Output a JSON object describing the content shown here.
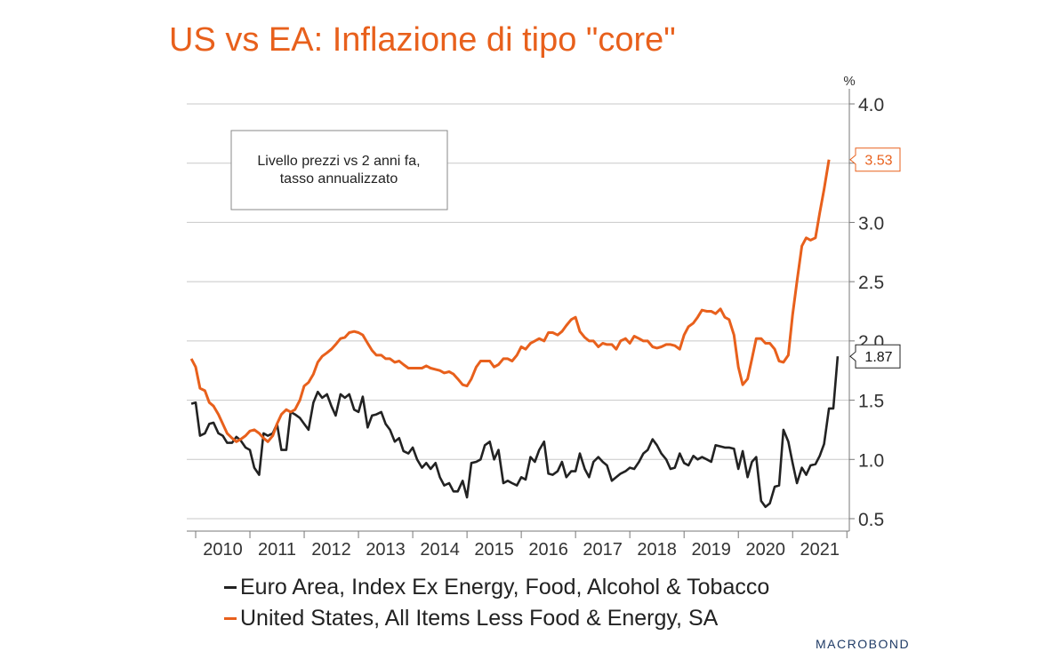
{
  "title": "US vs EA: Inflazione di tipo \"core\"",
  "annotation": {
    "line1": "Livello prezzi vs 2 anni fa,",
    "line2": "tasso annualizzato"
  },
  "unit_label": "%",
  "logo_text": "MACROBOND",
  "colors": {
    "us": "#e8601c",
    "ea": "#222222",
    "grid": "#c8c8c8"
  },
  "chart_data": {
    "type": "line",
    "title": "US vs EA: Inflazione di tipo \"core\"",
    "ylabel": "%",
    "ylim": [
      0.4,
      4.1
    ],
    "yticks": [
      0.5,
      1.0,
      1.5,
      2.0,
      2.5,
      3.0,
      3.5,
      4.0
    ],
    "ytick_labels": [
      "0.5",
      "1.0",
      "1.5",
      "2.0",
      "2.5",
      "3.0",
      "",
      "4.0"
    ],
    "xlim": [
      2009.75,
      2022.05
    ],
    "xtick_labels": [
      "2010",
      "2011",
      "2012",
      "2013",
      "2014",
      "2015",
      "2016",
      "2017",
      "2018",
      "2019",
      "2020",
      "2021"
    ],
    "grid": true,
    "legend_position": "bottom",
    "series": [
      {
        "name": "Euro Area, Index Ex Energy, Food, Alcohol & Tobacco",
        "key": "ea",
        "last_value_label": "1.87",
        "points": [
          [
            2009.92,
            1.47
          ],
          [
            2010.0,
            1.48
          ],
          [
            2010.08,
            1.2
          ],
          [
            2010.17,
            1.22
          ],
          [
            2010.25,
            1.3
          ],
          [
            2010.33,
            1.31
          ],
          [
            2010.42,
            1.22
          ],
          [
            2010.5,
            1.2
          ],
          [
            2010.58,
            1.14
          ],
          [
            2010.67,
            1.14
          ],
          [
            2010.75,
            1.19
          ],
          [
            2010.83,
            1.16
          ],
          [
            2010.92,
            1.1
          ],
          [
            2011.0,
            1.08
          ],
          [
            2011.08,
            0.93
          ],
          [
            2011.17,
            0.87
          ],
          [
            2011.25,
            1.22
          ],
          [
            2011.33,
            1.2
          ],
          [
            2011.42,
            1.22
          ],
          [
            2011.5,
            1.3
          ],
          [
            2011.58,
            1.08
          ],
          [
            2011.67,
            1.08
          ],
          [
            2011.75,
            1.4
          ],
          [
            2011.83,
            1.38
          ],
          [
            2011.92,
            1.35
          ],
          [
            2012.0,
            1.3
          ],
          [
            2012.08,
            1.25
          ],
          [
            2012.17,
            1.48
          ],
          [
            2012.25,
            1.57
          ],
          [
            2012.33,
            1.52
          ],
          [
            2012.42,
            1.55
          ],
          [
            2012.5,
            1.45
          ],
          [
            2012.58,
            1.37
          ],
          [
            2012.67,
            1.55
          ],
          [
            2012.75,
            1.52
          ],
          [
            2012.83,
            1.55
          ],
          [
            2012.92,
            1.42
          ],
          [
            2013.0,
            1.4
          ],
          [
            2013.08,
            1.53
          ],
          [
            2013.17,
            1.27
          ],
          [
            2013.25,
            1.37
          ],
          [
            2013.33,
            1.38
          ],
          [
            2013.42,
            1.4
          ],
          [
            2013.5,
            1.3
          ],
          [
            2013.58,
            1.25
          ],
          [
            2013.67,
            1.15
          ],
          [
            2013.75,
            1.18
          ],
          [
            2013.83,
            1.07
          ],
          [
            2013.92,
            1.05
          ],
          [
            2014.0,
            1.1
          ],
          [
            2014.08,
            1.0
          ],
          [
            2014.17,
            0.93
          ],
          [
            2014.25,
            0.97
          ],
          [
            2014.33,
            0.92
          ],
          [
            2014.42,
            0.97
          ],
          [
            2014.5,
            0.85
          ],
          [
            2014.58,
            0.78
          ],
          [
            2014.67,
            0.8
          ],
          [
            2014.75,
            0.73
          ],
          [
            2014.83,
            0.73
          ],
          [
            2014.92,
            0.82
          ],
          [
            2015.0,
            0.68
          ],
          [
            2015.08,
            0.97
          ],
          [
            2015.17,
            0.98
          ],
          [
            2015.25,
            1.0
          ],
          [
            2015.33,
            1.12
          ],
          [
            2015.42,
            1.15
          ],
          [
            2015.5,
            1.0
          ],
          [
            2015.58,
            1.08
          ],
          [
            2015.67,
            0.8
          ],
          [
            2015.75,
            0.82
          ],
          [
            2015.83,
            0.8
          ],
          [
            2015.92,
            0.78
          ],
          [
            2016.0,
            0.85
          ],
          [
            2016.08,
            0.83
          ],
          [
            2016.17,
            1.02
          ],
          [
            2016.25,
            0.98
          ],
          [
            2016.33,
            1.08
          ],
          [
            2016.42,
            1.15
          ],
          [
            2016.5,
            0.88
          ],
          [
            2016.58,
            0.87
          ],
          [
            2016.67,
            0.9
          ],
          [
            2016.75,
            0.98
          ],
          [
            2016.83,
            0.85
          ],
          [
            2016.92,
            0.9
          ],
          [
            2017.0,
            0.9
          ],
          [
            2017.08,
            1.05
          ],
          [
            2017.17,
            0.92
          ],
          [
            2017.25,
            0.85
          ],
          [
            2017.33,
            0.98
          ],
          [
            2017.42,
            1.02
          ],
          [
            2017.5,
            0.98
          ],
          [
            2017.58,
            0.95
          ],
          [
            2017.67,
            0.82
          ],
          [
            2017.75,
            0.85
          ],
          [
            2017.83,
            0.88
          ],
          [
            2017.92,
            0.9
          ],
          [
            2018.0,
            0.93
          ],
          [
            2018.08,
            0.92
          ],
          [
            2018.17,
            0.98
          ],
          [
            2018.25,
            1.05
          ],
          [
            2018.33,
            1.08
          ],
          [
            2018.42,
            1.17
          ],
          [
            2018.5,
            1.12
          ],
          [
            2018.58,
            1.05
          ],
          [
            2018.67,
            1.0
          ],
          [
            2018.75,
            0.92
          ],
          [
            2018.83,
            0.93
          ],
          [
            2018.92,
            1.05
          ],
          [
            2019.0,
            0.97
          ],
          [
            2019.08,
            0.95
          ],
          [
            2019.17,
            1.03
          ],
          [
            2019.25,
            1.0
          ],
          [
            2019.33,
            1.02
          ],
          [
            2019.42,
            1.0
          ],
          [
            2019.5,
            0.98
          ],
          [
            2019.58,
            1.12
          ],
          [
            2019.67,
            1.11
          ],
          [
            2019.75,
            1.1
          ],
          [
            2019.83,
            1.1
          ],
          [
            2019.92,
            1.09
          ],
          [
            2020.0,
            0.92
          ],
          [
            2020.08,
            1.07
          ],
          [
            2020.17,
            0.85
          ],
          [
            2020.25,
            0.98
          ],
          [
            2020.33,
            1.02
          ],
          [
            2020.42,
            0.65
          ],
          [
            2020.5,
            0.6
          ],
          [
            2020.58,
            0.63
          ],
          [
            2020.67,
            0.77
          ],
          [
            2020.75,
            0.78
          ],
          [
            2020.83,
            1.25
          ],
          [
            2020.92,
            1.15
          ],
          [
            2021.0,
            0.97
          ],
          [
            2021.08,
            0.8
          ],
          [
            2021.17,
            0.93
          ],
          [
            2021.25,
            0.87
          ],
          [
            2021.33,
            0.95
          ],
          [
            2021.42,
            0.96
          ],
          [
            2021.5,
            1.03
          ],
          [
            2021.58,
            1.13
          ],
          [
            2021.67,
            1.43
          ],
          [
            2021.75,
            1.43
          ],
          [
            2021.83,
            1.87
          ]
        ]
      },
      {
        "name": "United States, All Items Less Food & Energy, SA",
        "key": "us",
        "last_value_label": "3.53",
        "points": [
          [
            2009.92,
            1.85
          ],
          [
            2010.0,
            1.78
          ],
          [
            2010.08,
            1.6
          ],
          [
            2010.17,
            1.58
          ],
          [
            2010.25,
            1.48
          ],
          [
            2010.33,
            1.45
          ],
          [
            2010.42,
            1.38
          ],
          [
            2010.5,
            1.3
          ],
          [
            2010.58,
            1.22
          ],
          [
            2010.67,
            1.18
          ],
          [
            2010.75,
            1.15
          ],
          [
            2010.83,
            1.17
          ],
          [
            2010.92,
            1.2
          ],
          [
            2011.0,
            1.24
          ],
          [
            2011.08,
            1.25
          ],
          [
            2011.17,
            1.22
          ],
          [
            2011.25,
            1.18
          ],
          [
            2011.33,
            1.15
          ],
          [
            2011.42,
            1.2
          ],
          [
            2011.5,
            1.3
          ],
          [
            2011.58,
            1.38
          ],
          [
            2011.67,
            1.42
          ],
          [
            2011.75,
            1.4
          ],
          [
            2011.83,
            1.42
          ],
          [
            2011.92,
            1.5
          ],
          [
            2012.0,
            1.62
          ],
          [
            2012.08,
            1.65
          ],
          [
            2012.17,
            1.72
          ],
          [
            2012.25,
            1.82
          ],
          [
            2012.33,
            1.87
          ],
          [
            2012.42,
            1.9
          ],
          [
            2012.5,
            1.93
          ],
          [
            2012.58,
            1.97
          ],
          [
            2012.67,
            2.02
          ],
          [
            2012.75,
            2.03
          ],
          [
            2012.83,
            2.07
          ],
          [
            2012.92,
            2.08
          ],
          [
            2013.0,
            2.07
          ],
          [
            2013.08,
            2.05
          ],
          [
            2013.17,
            1.98
          ],
          [
            2013.25,
            1.92
          ],
          [
            2013.33,
            1.88
          ],
          [
            2013.42,
            1.88
          ],
          [
            2013.5,
            1.85
          ],
          [
            2013.58,
            1.85
          ],
          [
            2013.67,
            1.82
          ],
          [
            2013.75,
            1.83
          ],
          [
            2013.83,
            1.8
          ],
          [
            2013.92,
            1.77
          ],
          [
            2014.0,
            1.77
          ],
          [
            2014.08,
            1.77
          ],
          [
            2014.17,
            1.77
          ],
          [
            2014.25,
            1.79
          ],
          [
            2014.33,
            1.77
          ],
          [
            2014.42,
            1.76
          ],
          [
            2014.5,
            1.75
          ],
          [
            2014.58,
            1.73
          ],
          [
            2014.67,
            1.74
          ],
          [
            2014.75,
            1.72
          ],
          [
            2014.83,
            1.68
          ],
          [
            2014.92,
            1.63
          ],
          [
            2015.0,
            1.62
          ],
          [
            2015.08,
            1.68
          ],
          [
            2015.17,
            1.78
          ],
          [
            2015.25,
            1.83
          ],
          [
            2015.33,
            1.83
          ],
          [
            2015.42,
            1.83
          ],
          [
            2015.5,
            1.78
          ],
          [
            2015.58,
            1.8
          ],
          [
            2015.67,
            1.85
          ],
          [
            2015.75,
            1.85
          ],
          [
            2015.83,
            1.83
          ],
          [
            2015.92,
            1.88
          ],
          [
            2016.0,
            1.95
          ],
          [
            2016.08,
            1.93
          ],
          [
            2016.17,
            1.98
          ],
          [
            2016.25,
            2.0
          ],
          [
            2016.33,
            2.02
          ],
          [
            2016.42,
            2.0
          ],
          [
            2016.5,
            2.07
          ],
          [
            2016.58,
            2.07
          ],
          [
            2016.67,
            2.05
          ],
          [
            2016.75,
            2.08
          ],
          [
            2016.83,
            2.13
          ],
          [
            2016.92,
            2.18
          ],
          [
            2017.0,
            2.2
          ],
          [
            2017.08,
            2.08
          ],
          [
            2017.17,
            2.03
          ],
          [
            2017.25,
            2.0
          ],
          [
            2017.33,
            2.0
          ],
          [
            2017.42,
            1.95
          ],
          [
            2017.5,
            1.98
          ],
          [
            2017.58,
            1.97
          ],
          [
            2017.67,
            1.97
          ],
          [
            2017.75,
            1.93
          ],
          [
            2017.83,
            2.0
          ],
          [
            2017.92,
            2.02
          ],
          [
            2018.0,
            1.98
          ],
          [
            2018.08,
            2.04
          ],
          [
            2018.17,
            2.02
          ],
          [
            2018.25,
            2.0
          ],
          [
            2018.33,
            2.0
          ],
          [
            2018.42,
            1.95
          ],
          [
            2018.5,
            1.94
          ],
          [
            2018.58,
            1.95
          ],
          [
            2018.67,
            1.97
          ],
          [
            2018.75,
            1.97
          ],
          [
            2018.83,
            1.96
          ],
          [
            2018.92,
            1.93
          ],
          [
            2019.0,
            2.05
          ],
          [
            2019.08,
            2.12
          ],
          [
            2019.17,
            2.15
          ],
          [
            2019.25,
            2.2
          ],
          [
            2019.33,
            2.26
          ],
          [
            2019.42,
            2.25
          ],
          [
            2019.5,
            2.25
          ],
          [
            2019.58,
            2.23
          ],
          [
            2019.67,
            2.27
          ],
          [
            2019.75,
            2.2
          ],
          [
            2019.83,
            2.18
          ],
          [
            2019.92,
            2.05
          ],
          [
            2020.0,
            1.78
          ],
          [
            2020.08,
            1.63
          ],
          [
            2020.17,
            1.68
          ],
          [
            2020.25,
            1.85
          ],
          [
            2020.33,
            2.02
          ],
          [
            2020.42,
            2.02
          ],
          [
            2020.5,
            1.98
          ],
          [
            2020.58,
            1.98
          ],
          [
            2020.67,
            1.93
          ],
          [
            2020.75,
            1.83
          ],
          [
            2020.83,
            1.82
          ],
          [
            2020.92,
            1.88
          ],
          [
            2021.0,
            2.22
          ],
          [
            2021.08,
            2.5
          ],
          [
            2021.17,
            2.8
          ],
          [
            2021.25,
            2.87
          ],
          [
            2021.33,
            2.85
          ],
          [
            2021.42,
            2.87
          ],
          [
            2021.5,
            3.08
          ],
          [
            2021.58,
            3.28
          ],
          [
            2021.67,
            3.53
          ]
        ]
      }
    ]
  }
}
